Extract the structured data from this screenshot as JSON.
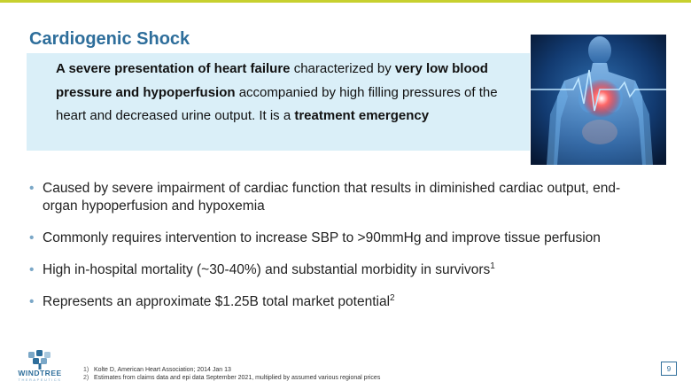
{
  "slide": {
    "title": "Cardiogenic Shock",
    "page_number": "9"
  },
  "callout": {
    "part1_bold": "A severe presentation of heart failure",
    "part2": " characterized by ",
    "part3_bold": "very low blood pressure and hypoperfusion",
    "part4": " accompanied by high filling pressures of the heart and decreased urine output.  It is a ",
    "part5_bold": "treatment emergency"
  },
  "bullets": [
    {
      "text": "Caused by severe impairment of cardiac function that results in diminished cardiac output, end-organ hypoperfusion and hypoxemia",
      "sup": ""
    },
    {
      "text": "Commonly requires intervention to increase SBP to >90mmHg and improve tissue perfusion",
      "sup": ""
    },
    {
      "text": "High in-hospital mortality (~30-40%) and substantial morbidity in survivors",
      "sup": "1"
    },
    {
      "text": "Represents an approximate $1.25B total market potential",
      "sup": "2"
    }
  ],
  "bullet_glyph": "•",
  "footnotes": [
    {
      "num": "1)",
      "text": "Kolte D, American Heart Association; 2014 Jan 13"
    },
    {
      "num": "2)",
      "text": "Estimates from claims data and epi data September 2021, multiplied by assumed various regional prices"
    }
  ],
  "logo": {
    "name": "WINDTREE",
    "sub": "THERAPEUTICS"
  },
  "colors": {
    "accent_rule": "#c7d02e",
    "title": "#2e6e9b",
    "callout_bg": "#daeff8"
  },
  "icons": {
    "hero": "human-heart-ecg-image",
    "logo": "windtree-tree-logo"
  }
}
